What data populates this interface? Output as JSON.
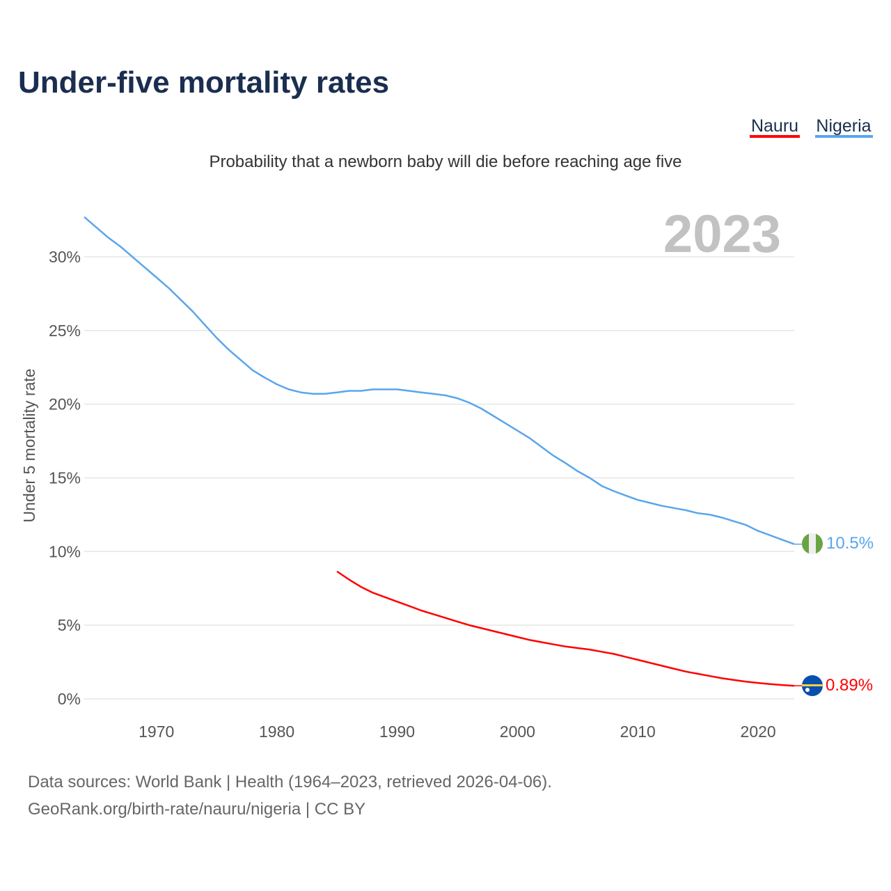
{
  "title": "Under-five mortality rates",
  "subtitle": "Probability that a newborn baby will die before reaching age five",
  "current_year": "2023",
  "footer": {
    "line1": "Data sources: World Bank | Health (1964–2023, retrieved 2026-04-06).",
    "line2": "GeoRank.org/birth-rate/nauru/nigeria | CC BY"
  },
  "chart_data": {
    "type": "line",
    "title": "Under-five mortality rates",
    "subtitle": "Probability that a newborn baby will die before reaching age five",
    "xlabel": "",
    "ylabel": "Under 5 mortality rate",
    "xlim": [
      1964,
      2023
    ],
    "ylim": [
      0,
      33
    ],
    "x_ticks": [
      1970,
      1980,
      1990,
      2000,
      2010,
      2020
    ],
    "y_ticks": [
      0,
      5,
      10,
      15,
      20,
      25,
      30
    ],
    "y_tick_labels": [
      "0%",
      "5%",
      "10%",
      "15%",
      "20%",
      "25%",
      "30%"
    ],
    "grid": true,
    "legend_position": "top-right",
    "series": [
      {
        "name": "Nauru",
        "color": "#ff0000",
        "end_label": "0.89%",
        "flag": "nauru-flag",
        "x": [
          1985,
          1986,
          1987,
          1988,
          1989,
          1990,
          1991,
          1992,
          1993,
          1994,
          1995,
          1996,
          1997,
          1998,
          1999,
          2000,
          2001,
          2002,
          2003,
          2004,
          2005,
          2006,
          2007,
          2008,
          2009,
          2010,
          2011,
          2012,
          2013,
          2014,
          2015,
          2016,
          2017,
          2018,
          2019,
          2020,
          2021,
          2022,
          2023
        ],
        "values": [
          8.65,
          8.1,
          7.6,
          7.2,
          6.9,
          6.6,
          6.3,
          6.0,
          5.75,
          5.5,
          5.25,
          5.0,
          4.8,
          4.6,
          4.4,
          4.2,
          4.0,
          3.85,
          3.7,
          3.55,
          3.45,
          3.35,
          3.2,
          3.05,
          2.85,
          2.65,
          2.45,
          2.25,
          2.05,
          1.85,
          1.7,
          1.55,
          1.4,
          1.28,
          1.17,
          1.08,
          1.0,
          0.94,
          0.89
        ]
      },
      {
        "name": "Nigeria",
        "color": "#5aa5ec",
        "end_label": "10.5%",
        "flag": "nigeria-flag",
        "x": [
          1964,
          1965,
          1966,
          1967,
          1968,
          1969,
          1970,
          1971,
          1972,
          1973,
          1974,
          1975,
          1976,
          1977,
          1978,
          1979,
          1980,
          1981,
          1982,
          1983,
          1984,
          1985,
          1986,
          1987,
          1988,
          1989,
          1990,
          1991,
          1992,
          1993,
          1994,
          1995,
          1996,
          1997,
          1998,
          1999,
          2000,
          2001,
          2002,
          2003,
          2004,
          2005,
          2006,
          2007,
          2008,
          2009,
          2010,
          2011,
          2012,
          2013,
          2014,
          2015,
          2016,
          2017,
          2018,
          2019,
          2020,
          2021,
          2022,
          2023
        ],
        "values": [
          32.7,
          32.0,
          31.3,
          30.7,
          30.0,
          29.3,
          28.6,
          27.9,
          27.1,
          26.3,
          25.4,
          24.5,
          23.7,
          23.0,
          22.3,
          21.8,
          21.35,
          21.0,
          20.8,
          20.7,
          20.7,
          20.8,
          20.9,
          20.9,
          21.0,
          21.0,
          21.0,
          20.9,
          20.8,
          20.7,
          20.6,
          20.4,
          20.1,
          19.7,
          19.2,
          18.7,
          18.2,
          17.7,
          17.1,
          16.5,
          16.0,
          15.45,
          15.0,
          14.45,
          14.1,
          13.8,
          13.5,
          13.3,
          13.1,
          12.95,
          12.8,
          12.6,
          12.5,
          12.3,
          12.05,
          11.8,
          11.4,
          11.1,
          10.8,
          10.5
        ]
      }
    ]
  }
}
